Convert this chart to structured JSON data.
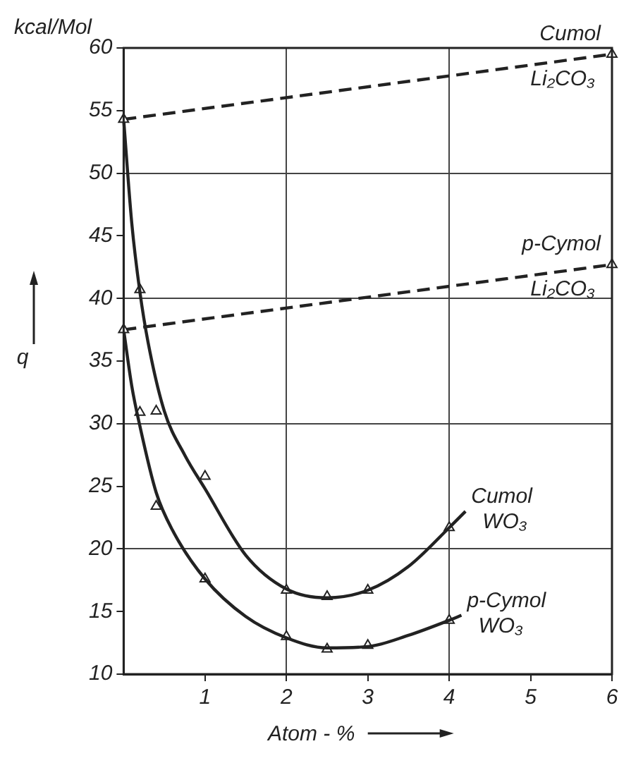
{
  "chart_data": {
    "type": "line",
    "xlabel": "Atom - %",
    "ylabel": "q",
    "annotations": [
      "kcal/Mol"
    ],
    "xlim": [
      0,
      6
    ],
    "xticks": [
      1,
      2,
      3,
      4,
      5,
      6
    ],
    "ylim": [
      10,
      60
    ],
    "yticks": [
      10,
      15,
      20,
      25,
      30,
      35,
      40,
      45,
      50,
      55,
      60
    ],
    "grid": true,
    "legend": false,
    "series": [
      {
        "name": "Cumol Li₂CO₃",
        "line_style": "dashed",
        "marker": "triangle",
        "color": "#222222",
        "x": [
          0,
          6
        ],
        "values": [
          54.3,
          59.5
        ]
      },
      {
        "name": "p-Cymol Li₂CO₃",
        "line_style": "dashed",
        "marker": "triangle",
        "color": "#222222",
        "x": [
          0,
          6
        ],
        "values": [
          37.5,
          42.7
        ]
      },
      {
        "name": "Cumol WO₃",
        "line_style": "solid",
        "marker": "none",
        "color": "#222222",
        "x": [
          0,
          0.1,
          0.2,
          0.3,
          0.5,
          0.75,
          1,
          1.5,
          2,
          2.5,
          3,
          3.5,
          4,
          4.2
        ],
        "values": [
          54.3,
          46,
          40.5,
          36.5,
          31,
          27.5,
          24.8,
          19.5,
          16.8,
          16.1,
          16.7,
          18.6,
          21.7,
          23
        ]
      },
      {
        "name": "p-Cymol WO₃",
        "line_style": "solid",
        "marker": "none",
        "color": "#222222",
        "x": [
          0,
          0.1,
          0.2,
          0.4,
          0.6,
          1,
          1.5,
          2,
          2.5,
          3,
          3.5,
          4,
          4.15
        ],
        "values": [
          37.5,
          33,
          29.8,
          24.5,
          21.5,
          17.6,
          14.6,
          12.9,
          12.1,
          12.2,
          13.1,
          14.3,
          14.7
        ]
      },
      {
        "type": "scatter",
        "marker": "triangle",
        "color": "#222222",
        "x": [
          0.2,
          0.4,
          1,
          2,
          2.5,
          3,
          4
        ],
        "values": [
          40.7,
          31,
          25.8,
          16.7,
          16.2,
          16.7,
          21.7
        ]
      },
      {
        "type": "scatter",
        "marker": "triangle",
        "color": "#222222",
        "x": [
          0.2,
          0.4,
          1,
          2,
          2.5,
          3,
          4
        ],
        "values": [
          30.9,
          23.4,
          17.6,
          13,
          12,
          12.3,
          14.3
        ]
      }
    ]
  }
}
